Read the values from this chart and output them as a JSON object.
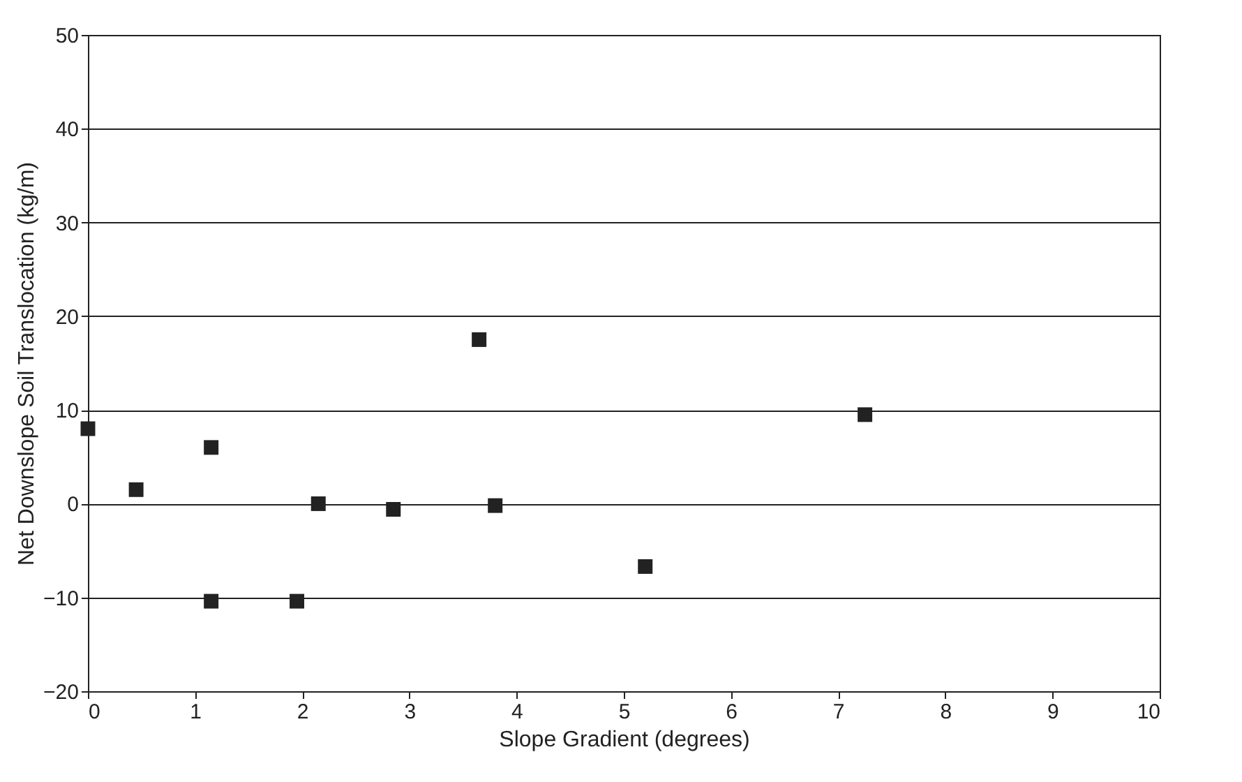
{
  "chart_data": {
    "type": "scatter",
    "xlabel": "Slope Gradient (degrees)",
    "ylabel": "Net Downslope Soil Translocation (kg/m)",
    "x": [
      0.0,
      0.45,
      1.15,
      1.15,
      1.95,
      2.15,
      2.85,
      3.65,
      3.8,
      5.2,
      7.25
    ],
    "series": [
      {
        "color": "#222222",
        "values": [
          8,
          1.5,
          6,
          -10.4,
          -10.4,
          0,
          -0.6,
          17.5,
          -0.2,
          -6.7,
          9.5
        ]
      }
    ],
    "xlim": [
      0,
      10
    ],
    "xticks": [
      0,
      1,
      2,
      3,
      4,
      5,
      6,
      7,
      8,
      9,
      10
    ],
    "ylim": [
      -20,
      50
    ],
    "yticks": [
      -20,
      -10,
      0,
      10,
      20,
      30,
      40,
      50
    ],
    "grid": "y",
    "marker": "square"
  }
}
